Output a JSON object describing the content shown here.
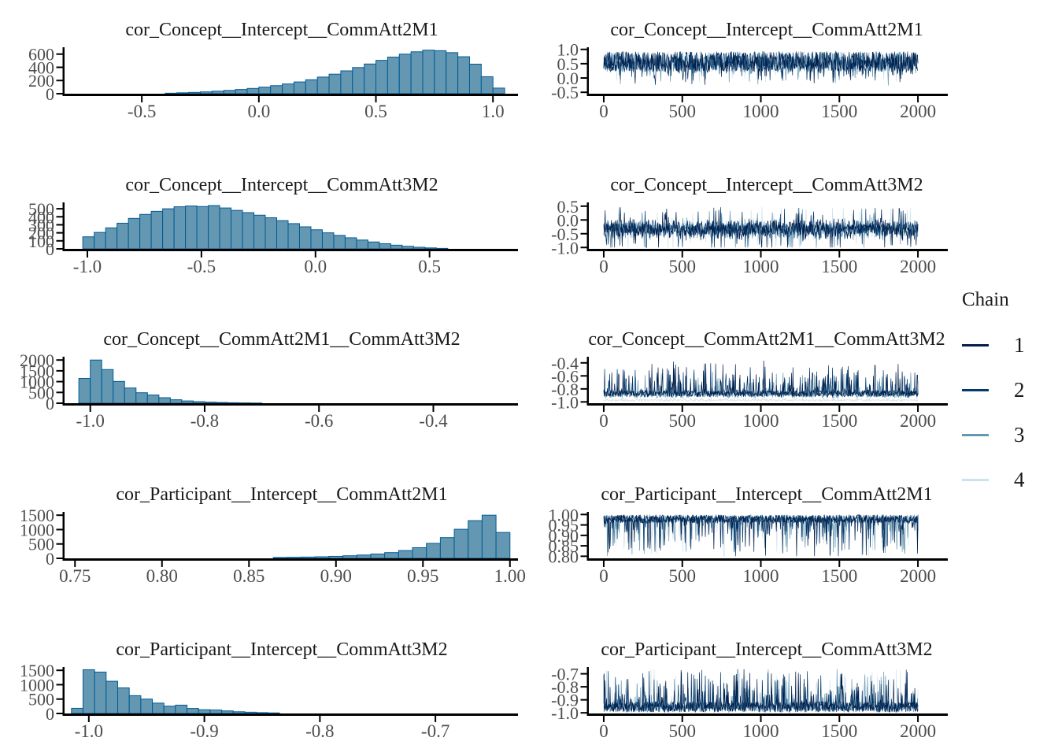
{
  "legend": {
    "title": "Chain",
    "items": [
      {
        "label": "1",
        "color": "#011f4b"
      },
      {
        "label": "2",
        "color": "#03396c"
      },
      {
        "label": "3",
        "color": "#6497b1"
      },
      {
        "label": "4",
        "color": "#d1e1ec"
      }
    ]
  },
  "colors": {
    "hist_fill": "#6497b1",
    "hist_stroke": "#005b96",
    "axis": "#000000",
    "tick_label": "#4d4d4d"
  },
  "chart_data": [
    {
      "type": "bar",
      "kind": "histogram",
      "title": "cor_Concept__Intercept__CommAtt2M1",
      "x_start": -0.4,
      "bin_width": 0.05,
      "counts": [
        8,
        14,
        20,
        28,
        38,
        50,
        64,
        80,
        100,
        122,
        148,
        178,
        212,
        252,
        296,
        346,
        396,
        450,
        505,
        555,
        600,
        635,
        660,
        652,
        622,
        560,
        448,
        258,
        85
      ],
      "xlim": [
        -0.83,
        1.08
      ],
      "x_ticks": [
        -0.5,
        0.0,
        0.5,
        1.0
      ],
      "x_tick_labels": [
        "-0.5",
        "0.0",
        "0.5",
        "1.0"
      ],
      "ylim": [
        0,
        680
      ],
      "y_ticks": [
        0,
        200,
        400,
        600
      ],
      "y_tick_labels": [
        "0",
        "200",
        "400",
        "600"
      ]
    },
    {
      "type": "line",
      "kind": "trace",
      "title": "cor_Concept__Intercept__CommAtt2M1",
      "xlim": [
        -95,
        2155
      ],
      "x_ticks": [
        0,
        500,
        1000,
        1500,
        2000
      ],
      "x_tick_labels": [
        "0",
        "500",
        "1000",
        "1500",
        "2000"
      ],
      "ylim": [
        -0.55,
        1.02
      ],
      "y_ticks": [
        1.0,
        0.5,
        0.0,
        -0.5
      ],
      "y_tick_labels": [
        "1.0",
        "0.5",
        "0.0",
        "-0.5"
      ],
      "n_iterations": 2000,
      "chains": 4,
      "sim": {
        "style": "top",
        "edge": 0.93,
        "jit": 0.72,
        "spike": 0.55,
        "clamp": [
          -0.5,
          0.96
        ],
        "seed": 11
      }
    },
    {
      "type": "bar",
      "kind": "histogram",
      "title": "cor_Concept__Intercept__CommAtt3M2",
      "x_start": -1.02,
      "bin_width": 0.05,
      "counts": [
        150,
        205,
        262,
        320,
        380,
        430,
        468,
        500,
        525,
        535,
        528,
        540,
        510,
        480,
        452,
        420,
        388,
        352,
        315,
        275,
        238,
        200,
        168,
        138,
        110,
        86,
        64,
        46,
        32,
        20,
        12,
        6
      ],
      "xlim": [
        -1.1,
        0.86
      ],
      "x_ticks": [
        -1.0,
        -0.5,
        0.0,
        0.5
      ],
      "x_tick_labels": [
        "-1.0",
        "-0.5",
        "0.0",
        "0.5"
      ],
      "ylim": [
        0,
        560
      ],
      "y_ticks": [
        0,
        100,
        200,
        300,
        400,
        500
      ],
      "y_tick_labels": [
        "0",
        "100",
        "200",
        "300",
        "400",
        "500"
      ]
    },
    {
      "type": "line",
      "kind": "trace",
      "title": "cor_Concept__Intercept__CommAtt3M2",
      "xlim": [
        -95,
        2155
      ],
      "x_ticks": [
        0,
        500,
        1000,
        1500,
        2000
      ],
      "x_tick_labels": [
        "0",
        "500",
        "1000",
        "1500",
        "2000"
      ],
      "ylim": [
        -1.05,
        0.58
      ],
      "y_ticks": [
        0.5,
        0.0,
        -0.5,
        -1.0
      ],
      "y_tick_labels": [
        "0.5",
        "0.0",
        "-0.5",
        "-1.0"
      ],
      "n_iterations": 2000,
      "chains": 4,
      "sim": {
        "style": "band",
        "center": -0.33,
        "spread": 0.5,
        "clamp": [
          -1.0,
          0.53
        ],
        "seed": 22
      }
    },
    {
      "type": "bar",
      "kind": "histogram",
      "title": "cor_Concept__CommAtt2M1__CommAtt3M2",
      "x_start": -1.02,
      "bin_width": 0.02,
      "counts": [
        1150,
        2000,
        1560,
        1010,
        705,
        485,
        380,
        255,
        160,
        105,
        72,
        50,
        34,
        22,
        14,
        8
      ],
      "xlim": [
        -1.045,
        -0.263
      ],
      "x_ticks": [
        -1.0,
        -0.8,
        -0.6,
        -0.4
      ],
      "x_tick_labels": [
        "-1.0",
        "-0.8",
        "-0.6",
        "-0.4"
      ],
      "ylim": [
        0,
        2080
      ],
      "y_ticks": [
        0,
        500,
        1000,
        1500,
        2000
      ],
      "y_tick_labels": [
        "0",
        "500",
        "1000",
        "1500",
        "2000"
      ]
    },
    {
      "type": "line",
      "kind": "trace",
      "title": "cor_Concept__CommAtt2M1__CommAtt3M2",
      "xlim": [
        -95,
        2155
      ],
      "x_ticks": [
        0,
        500,
        1000,
        1500,
        2000
      ],
      "x_tick_labels": [
        "0",
        "500",
        "1000",
        "1500",
        "2000"
      ],
      "ylim": [
        -1.02,
        -0.33
      ],
      "y_ticks": [
        -0.4,
        -0.6,
        -0.8,
        -1.0
      ],
      "y_tick_labels": [
        "-0.4",
        "-0.6",
        "-0.8",
        "-1.0"
      ],
      "n_iterations": 2000,
      "chains": 4,
      "sim": {
        "style": "bottom",
        "edge": -0.96,
        "jit": 0.1,
        "spike": 0.5,
        "clamp": [
          -1.0,
          -0.36
        ],
        "offsets": [
          0.035,
          0.045,
          0.02,
          -0.03
        ],
        "jit_scale": [
          1,
          1,
          1,
          0.3
        ],
        "spike_scale": [
          1,
          0.9,
          0.7,
          0.08
        ],
        "seed": 33
      }
    },
    {
      "type": "bar",
      "kind": "histogram",
      "title": "cor_Participant__Intercept__CommAtt2M1",
      "x_start": 0.864,
      "bin_width": 0.008,
      "counts": [
        30,
        38,
        45,
        55,
        70,
        90,
        115,
        150,
        200,
        270,
        370,
        520,
        720,
        1010,
        1310,
        1500,
        900
      ],
      "xlim": [
        0.744,
        1.001
      ],
      "x_ticks": [
        0.75,
        0.8,
        0.85,
        0.9,
        0.95,
        1.0
      ],
      "x_tick_labels": [
        "0.75",
        "0.80",
        "0.85",
        "0.90",
        "0.95",
        "1.00"
      ],
      "ylim": [
        0,
        1560
      ],
      "y_ticks": [
        0,
        500,
        1000,
        1500
      ],
      "y_tick_labels": [
        "0",
        "500",
        "1000",
        "1500"
      ]
    },
    {
      "type": "line",
      "kind": "trace",
      "title": "cor_Participant__Intercept__CommAtt2M1",
      "xlim": [
        -95,
        2155
      ],
      "x_ticks": [
        0,
        500,
        1000,
        1500,
        2000
      ],
      "x_tick_labels": [
        "0",
        "500",
        "1000",
        "1500",
        "2000"
      ],
      "ylim": [
        0.79,
        1.005
      ],
      "y_ticks": [
        1.0,
        0.95,
        0.9,
        0.85,
        0.8
      ],
      "y_tick_labels": [
        "1.00",
        "0.95",
        "0.90",
        "0.85",
        "0.80"
      ],
      "n_iterations": 2000,
      "chains": 4,
      "sim": {
        "style": "top",
        "edge": 0.999,
        "jit": 0.04,
        "spike": 0.18,
        "clamp": [
          0.8,
          1.0
        ],
        "seed": 44
      }
    },
    {
      "type": "bar",
      "kind": "histogram",
      "title": "cor_Participant__Intercept__CommAtt3M2",
      "x_start": -1.015,
      "bin_width": 0.01,
      "counts": [
        180,
        1520,
        1440,
        1120,
        890,
        620,
        500,
        360,
        255,
        290,
        175,
        130,
        120,
        90,
        60,
        45,
        30,
        20
      ],
      "xlim": [
        -1.021,
        -0.634
      ],
      "x_ticks": [
        -1.0,
        -0.9,
        -0.8,
        -0.7
      ],
      "x_tick_labels": [
        "-1.0",
        "-0.9",
        "-0.8",
        "-0.7"
      ],
      "ylim": [
        0,
        1560
      ],
      "y_ticks": [
        0,
        500,
        1000,
        1500
      ],
      "y_tick_labels": [
        "0",
        "500",
        "1000",
        "1500"
      ]
    },
    {
      "type": "line",
      "kind": "trace",
      "title": "cor_Participant__Intercept__CommAtt3M2",
      "xlim": [
        -95,
        2155
      ],
      "x_ticks": [
        0,
        500,
        1000,
        1500,
        2000
      ],
      "x_tick_labels": [
        "0",
        "500",
        "1000",
        "1500",
        "2000"
      ],
      "ylim": [
        -1.005,
        -0.66
      ],
      "y_ticks": [
        -0.7,
        -0.8,
        -0.9,
        -1.0
      ],
      "y_tick_labels": [
        "-0.7",
        "-0.8",
        "-0.9",
        "-1.0"
      ],
      "n_iterations": 2000,
      "chains": 4,
      "sim": {
        "style": "bottom",
        "edge": -0.995,
        "jit": 0.08,
        "spike": 0.28,
        "clamp": [
          -1.0,
          -0.665
        ],
        "seed": 55
      }
    }
  ]
}
